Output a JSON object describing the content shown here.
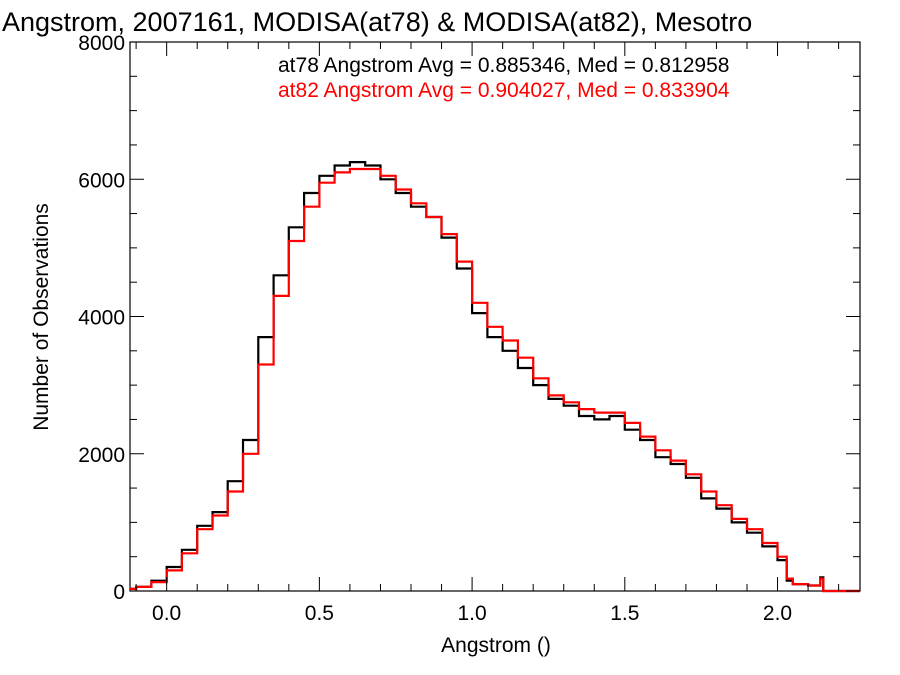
{
  "chart_data": {
    "type": "step-histogram",
    "title": "Angstrom, 2007161, MODISA(at78) & MODISA(at82), Mesotro",
    "xlabel": "Angstrom ()",
    "ylabel": "Number of Observations",
    "xlim": [
      -0.12,
      2.27
    ],
    "ylim": [
      0,
      8000
    ],
    "x_ticks": [
      0.0,
      0.5,
      1.0,
      1.5,
      2.0
    ],
    "x_tick_labels": [
      "0.0",
      "0.5",
      "1.0",
      "1.5",
      "2.0"
    ],
    "y_ticks": [
      0,
      2000,
      4000,
      6000,
      8000
    ],
    "y_tick_labels": [
      "0",
      "2000",
      "4000",
      "6000",
      "8000"
    ],
    "annotations": [
      {
        "text": "at78 Angstrom Avg = 0.885346, Med = 0.812958",
        "color": "#000000"
      },
      {
        "text": "at82 Angstrom Avg = 0.904027, Med = 0.833904",
        "color": "#ff0000"
      }
    ],
    "series": [
      {
        "color": "#000000",
        "x": [
          -0.12,
          -0.1,
          -0.05,
          0.0,
          0.05,
          0.1,
          0.15,
          0.2,
          0.25,
          0.3,
          0.35,
          0.4,
          0.45,
          0.5,
          0.55,
          0.6,
          0.65,
          0.7,
          0.75,
          0.8,
          0.85,
          0.9,
          0.95,
          1.0,
          1.05,
          1.1,
          1.15,
          1.2,
          1.25,
          1.3,
          1.35,
          1.4,
          1.45,
          1.5,
          1.55,
          1.6,
          1.65,
          1.7,
          1.75,
          1.8,
          1.85,
          1.9,
          1.95,
          2.0,
          2.03,
          2.05,
          2.1,
          2.14,
          2.15,
          2.27
        ],
        "y": [
          30,
          60,
          150,
          350,
          600,
          950,
          1150,
          1600,
          2200,
          3700,
          4600,
          5300,
          5800,
          6050,
          6200,
          6250,
          6200,
          6000,
          5800,
          5600,
          5450,
          5150,
          4700,
          4050,
          3700,
          3500,
          3250,
          3000,
          2800,
          2700,
          2550,
          2500,
          2550,
          2350,
          2200,
          1950,
          1850,
          1650,
          1350,
          1200,
          1000,
          850,
          650,
          450,
          150,
          100,
          80,
          200,
          0,
          0
        ]
      },
      {
        "color": "#ff0000",
        "x": [
          -0.12,
          -0.1,
          -0.05,
          0.0,
          0.05,
          0.1,
          0.15,
          0.2,
          0.25,
          0.3,
          0.35,
          0.4,
          0.45,
          0.5,
          0.55,
          0.6,
          0.65,
          0.7,
          0.75,
          0.8,
          0.85,
          0.9,
          0.95,
          1.0,
          1.05,
          1.1,
          1.15,
          1.2,
          1.25,
          1.3,
          1.35,
          1.4,
          1.45,
          1.5,
          1.55,
          1.6,
          1.65,
          1.7,
          1.75,
          1.8,
          1.85,
          1.9,
          1.95,
          2.0,
          2.03,
          2.05,
          2.1,
          2.14,
          2.15,
          2.27
        ],
        "y": [
          30,
          60,
          130,
          300,
          550,
          900,
          1100,
          1450,
          2000,
          3300,
          4300,
          5100,
          5600,
          5950,
          6100,
          6150,
          6150,
          6050,
          5850,
          5650,
          5450,
          5200,
          4800,
          4200,
          3850,
          3650,
          3400,
          3100,
          2850,
          2750,
          2650,
          2600,
          2600,
          2450,
          2250,
          2050,
          1900,
          1700,
          1450,
          1250,
          1050,
          900,
          700,
          500,
          180,
          100,
          80,
          180,
          0,
          0
        ]
      }
    ]
  }
}
